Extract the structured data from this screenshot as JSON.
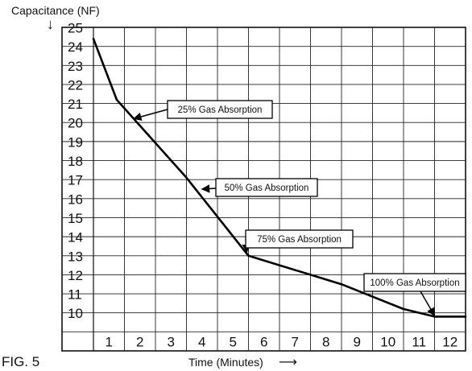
{
  "figure_label": "FIG. 5",
  "chart_data": {
    "type": "line",
    "ylabel": "Capacitance (NF)",
    "xlabel": "Time (Minutes)",
    "x_ticks": [
      1,
      2,
      3,
      4,
      5,
      6,
      7,
      8,
      9,
      10,
      11,
      12
    ],
    "y_ticks": [
      10,
      11,
      12,
      13,
      14,
      15,
      16,
      17,
      18,
      19,
      20,
      21,
      22,
      23,
      24,
      25
    ],
    "xlim": [
      0,
      12
    ],
    "ylim": [
      9,
      25
    ],
    "grid": true,
    "series": [
      {
        "x": [
          0,
          0.75,
          3,
          5,
          6,
          8,
          10,
          11,
          12
        ],
        "y": [
          24.4,
          21.2,
          17.1,
          13,
          12.5,
          11.5,
          10.2,
          9.8,
          9.8
        ]
      }
    ],
    "annotations": [
      {
        "text": "25% Gas Absorption",
        "x": 1.3,
        "y": 20.2
      },
      {
        "text": "50% Gas Absorption",
        "x": 3.5,
        "y": 16.5
      },
      {
        "text": "75% Gas Absorption",
        "x": 4.95,
        "y": 13.2
      },
      {
        "text": "100% Gas Absorption",
        "x": 11,
        "y": 9.85
      }
    ]
  }
}
